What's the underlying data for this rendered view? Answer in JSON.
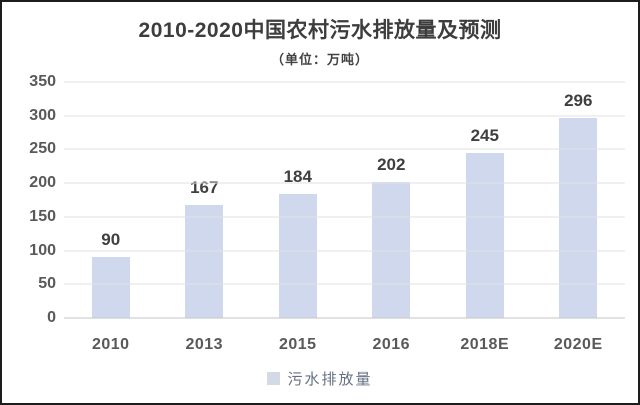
{
  "chart_data": {
    "type": "bar",
    "title": "2010-2020中国农村污水排放量及预测",
    "subtitle": "（单位：万吨）",
    "categories": [
      "2010",
      "2013",
      "2015",
      "2016",
      "2018E",
      "2020E"
    ],
    "values": [
      90,
      167,
      184,
      202,
      245,
      296
    ],
    "ylim": [
      0,
      350
    ],
    "ytick_step": 50,
    "yticks": [
      0,
      50,
      100,
      150,
      200,
      250,
      300,
      350
    ],
    "grid": true,
    "legend": [
      "污水排放量"
    ],
    "legend_position": "bottom",
    "colors": {
      "bar": "#cfd8ec",
      "legend_swatch": "#d3dae6",
      "gridline": "#e2e2e2",
      "axis_label": "#595959",
      "value_label": "#3f3f3f",
      "title": "#3d3d3d"
    }
  }
}
